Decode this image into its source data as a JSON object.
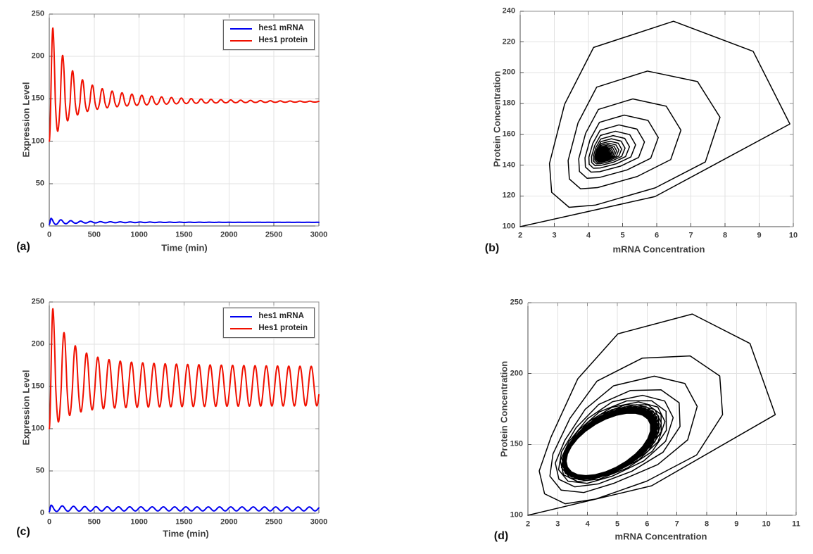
{
  "chart_data": [
    {
      "panel_label": "(a)",
      "type": "line",
      "xlabel": "Time (min)",
      "ylabel": "Expression Level",
      "xlim": [
        0,
        3000
      ],
      "ylim": [
        0,
        250
      ],
      "xticks": [
        0,
        500,
        1000,
        1500,
        2000,
        2500,
        3000
      ],
      "yticks": [
        0,
        50,
        100,
        150,
        200,
        250
      ],
      "grid": true,
      "legend": {
        "position": "top-right",
        "entries": [
          {
            "label": "hes1 mRNA",
            "color": "#0000f0"
          },
          {
            "label": "Hes1 protein",
            "color": "#f01000"
          }
        ]
      },
      "series": [
        {
          "name": "hes1 mRNA",
          "color": "#0000f0",
          "line_width": 2,
          "model": {
            "kind": "damped_oscillation",
            "t_end": 3000,
            "start": 2,
            "t_first_peak": 20,
            "first_peak": 9,
            "eq": 4.3,
            "period": 110,
            "amp_top0": 4.7,
            "amp_bot0": 3.2,
            "amp_end": 0,
            "mix": 0.7,
            "tau1": 170,
            "tau2": 800
          }
        },
        {
          "name": "Hes1 protein",
          "color": "#f01000",
          "line_width": 2,
          "model": {
            "kind": "damped_oscillation",
            "t_end": 3000,
            "start": 100,
            "t_first_peak": 40,
            "first_peak": 233.5,
            "eq": 146.5,
            "period": 110,
            "amp_top0": 87,
            "amp_bot0": 44,
            "amp_end": 0,
            "mix": 0.7,
            "tau1": 170,
            "tau2": 800
          }
        }
      ]
    },
    {
      "panel_label": "(b)",
      "type": "line",
      "xlabel": "mRNA Concentration",
      "ylabel": "Protein Concentration",
      "xlim": [
        2,
        10
      ],
      "ylim": [
        100,
        240
      ],
      "xticks": [
        2,
        3,
        4,
        5,
        6,
        7,
        8,
        9,
        10
      ],
      "yticks": [
        100,
        120,
        140,
        160,
        180,
        200,
        220,
        240
      ],
      "grid": true,
      "series": [
        {
          "name": "phase trajectory (mRNA vs protein), spiral to fixed point near (4.4, 146)",
          "color": "#000000",
          "line_width": 1.5,
          "model": {
            "kind": "phase_portrait",
            "dt": 10,
            "t_end": 3400,
            "x": {
              "start": 2,
              "t_first_peak": 20,
              "first_peak": 9.9,
              "eq": 4.4,
              "period": 110,
              "amp_top0": 5.5,
              "amp_bot0": 2.0,
              "amp_end": 0,
              "mix": 0.7,
              "tau1": 170,
              "tau2": 800
            },
            "y": {
              "start": 100,
              "t_first_peak": 40,
              "first_peak": 233.5,
              "eq": 146.5,
              "period": 110,
              "amp_top0": 87,
              "amp_bot0": 44,
              "amp_end": 0,
              "mix": 0.7,
              "tau1": 170,
              "tau2": 800
            }
          }
        }
      ]
    },
    {
      "panel_label": "(c)",
      "type": "line",
      "xlabel": "Time (min)",
      "ylabel": "Expression Level",
      "xlim": [
        0,
        3000
      ],
      "ylim": [
        0,
        250
      ],
      "xticks": [
        0,
        500,
        1000,
        1500,
        2000,
        2500,
        3000
      ],
      "yticks": [
        0,
        50,
        100,
        150,
        200,
        250
      ],
      "grid": true,
      "legend": {
        "position": "top-right",
        "entries": [
          {
            "label": "hes1 mRNA",
            "color": "#0000f0"
          },
          {
            "label": "Hes1 protein",
            "color": "#f01000"
          }
        ]
      },
      "series": [
        {
          "name": "hes1 mRNA",
          "color": "#0000f0",
          "line_width": 2,
          "model": {
            "kind": "damped_oscillation",
            "t_end": 3000,
            "start": 2,
            "t_first_peak": 20,
            "first_peak": 9.5,
            "eq": 5,
            "period": 125,
            "amp_top0": 4.5,
            "amp_bot0": 3.2,
            "amp_end": 2.3,
            "mix": 0.85,
            "tau1": 200,
            "tau2": 1400
          }
        },
        {
          "name": "Hes1 protein",
          "color": "#f01000",
          "line_width": 2,
          "model": {
            "kind": "damped_oscillation",
            "t_end": 3000,
            "start": 100,
            "t_first_peak": 40,
            "first_peak": 242,
            "eq": 150,
            "period": 125,
            "amp_top0": 92,
            "amp_bot0": 48,
            "amp_end": 22.5,
            "mix": 0.85,
            "tau1": 200,
            "tau2": 1400
          }
        }
      ]
    },
    {
      "panel_label": "(d)",
      "type": "line",
      "xlabel": "mRNA Concentration",
      "ylabel": "Protein Concentration",
      "xlim": [
        2,
        11
      ],
      "ylim": [
        100,
        250
      ],
      "xticks": [
        2,
        3,
        4,
        5,
        6,
        7,
        8,
        9,
        10,
        11
      ],
      "yticks": [
        100,
        150,
        200,
        250
      ],
      "grid": true,
      "series": [
        {
          "name": "phase trajectory (mRNA vs protein), converging to limit cycle around (4.7, 150)",
          "color": "#000000",
          "line_width": 1.5,
          "model": {
            "kind": "phase_portrait",
            "dt": 10,
            "t_end": 6000,
            "x": {
              "start": 2,
              "t_first_peak": 20,
              "first_peak": 10.3,
              "eq": 4.7,
              "period": 125,
              "amp_top0": 5.6,
              "amp_bot0": 2.6,
              "amp_end": 1.45,
              "mix": 0.85,
              "tau1": 200,
              "tau2": 1400
            },
            "y": {
              "start": 100,
              "t_first_peak": 40,
              "first_peak": 242,
              "eq": 150,
              "period": 125,
              "amp_top0": 92,
              "amp_bot0": 48,
              "amp_end": 22.5,
              "mix": 0.85,
              "tau1": 200,
              "tau2": 1400
            }
          }
        }
      ]
    }
  ]
}
